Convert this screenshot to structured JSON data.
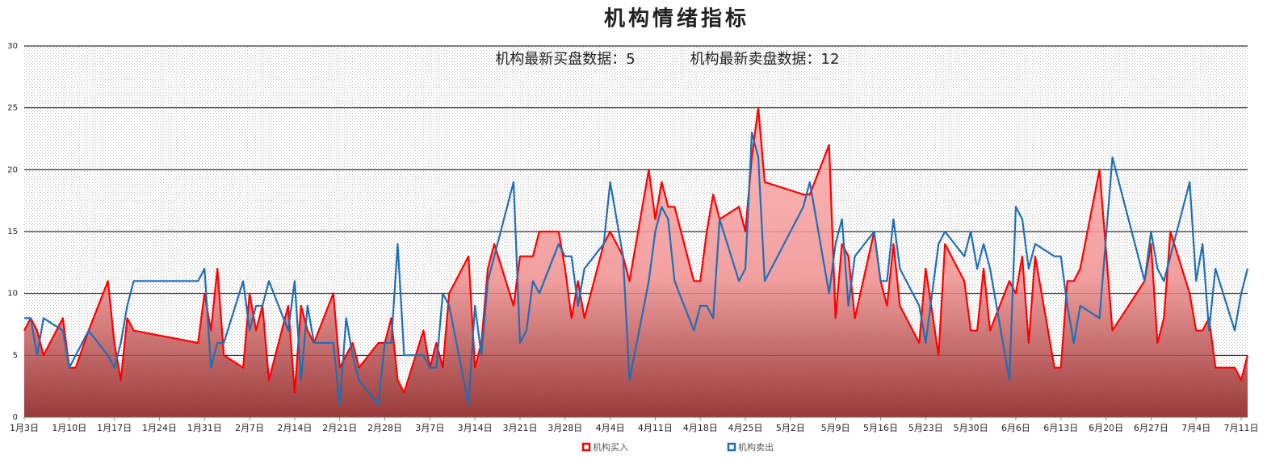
{
  "chart_data": {
    "type": "line",
    "title": "机构情绪指标",
    "annotations": [
      "机构最新买盘数据：5",
      "机构最新卖盘数据：12"
    ],
    "x": [
      "1月3日",
      "1月4日",
      "1月5日",
      "1月6日",
      "1月9日",
      "1月10日",
      "1月11日",
      "1月13日",
      "1月16日",
      "1月17日",
      "1月18日",
      "1月19日",
      "1月20日",
      "1月30日",
      "1月31日",
      "2月1日",
      "2月2日",
      "2月3日",
      "2月6日",
      "2月7日",
      "2月8日",
      "2月9日",
      "2月10日",
      "2月13日",
      "2月14日",
      "2月15日",
      "2月16日",
      "2月17日",
      "2月20日",
      "2月21日",
      "2月22日",
      "2月23日",
      "2月24日",
      "2月27日",
      "2月28日",
      "3月1日",
      "3月2日",
      "3月3日",
      "3月6日",
      "3月7日",
      "3月8日",
      "3月9日",
      "3月10日",
      "3月13日",
      "3月14日",
      "3月15日",
      "3月16日",
      "3月17日",
      "3月20日",
      "3月21日",
      "3月22日",
      "3月23日",
      "3月24日",
      "3月27日",
      "3月28日",
      "3月29日",
      "3月30日",
      "3月31日",
      "4月3日",
      "4月4日",
      "4月6日",
      "4月7日",
      "4月10日",
      "4月11日",
      "4月12日",
      "4月13日",
      "4月14日",
      "4月17日",
      "4月18日",
      "4月19日",
      "4月20日",
      "4月21日",
      "4月24日",
      "4月25日",
      "4月26日",
      "4月27日",
      "4月28日",
      "5月4日",
      "5月5日",
      "5月8日",
      "5月9日",
      "5月10日",
      "5月11日",
      "5月12日",
      "5月15日",
      "5月16日",
      "5月17日",
      "5月18日",
      "5月19日",
      "5月22日",
      "5月23日",
      "5月25日",
      "5月26日",
      "5月29日",
      "5月30日",
      "5月31日",
      "6月1日",
      "6月2日",
      "6月5日",
      "6月6日",
      "6月7日",
      "6月8日",
      "6月9日",
      "6月12日",
      "6月13日",
      "6月14日",
      "6月15日",
      "6月16日",
      "6月19日",
      "6月21日",
      "6月26日",
      "6月27日",
      "6月28日",
      "6月29日",
      "6月30日",
      "7月3日",
      "7月4日",
      "7月5日",
      "7月6日",
      "7月7日",
      "7月10日",
      "7月11日",
      "7月12日"
    ],
    "series": [
      {
        "name": "机构买入",
        "color": "#ff0000",
        "area": true,
        "values": [
          7,
          8,
          7,
          5,
          8,
          4,
          4,
          7,
          11,
          6,
          3,
          8,
          7,
          6,
          10,
          7,
          12,
          5,
          4,
          10,
          7,
          9,
          3,
          9,
          2,
          9,
          7,
          6,
          10,
          4,
          5,
          6,
          4,
          6,
          6,
          8,
          3,
          2,
          7,
          4,
          6,
          4,
          10,
          13,
          4,
          6,
          12,
          14,
          9,
          13,
          13,
          13,
          15,
          15,
          12,
          8,
          11,
          8,
          14,
          15,
          13,
          11,
          20,
          16,
          19,
          17,
          17,
          11,
          11,
          15,
          18,
          16,
          17,
          15,
          21,
          25,
          19,
          18,
          18,
          22,
          8,
          14,
          13,
          8,
          15,
          11,
          9,
          14,
          9,
          6,
          12,
          5,
          14,
          11,
          7,
          7,
          12,
          7,
          11,
          10,
          13,
          6,
          13,
          4,
          4,
          11,
          11,
          12,
          20,
          7,
          11,
          14,
          6,
          8,
          15,
          10,
          7,
          7,
          8,
          4,
          4,
          3,
          5
        ]
      },
      {
        "name": "机构卖出",
        "color": "#1f6fb5",
        "area": false,
        "values": [
          8,
          8,
          5,
          8,
          7,
          4,
          5,
          7,
          5,
          4,
          6,
          9,
          11,
          11,
          12,
          4,
          6,
          6,
          11,
          7,
          9,
          9,
          11,
          7,
          11,
          3,
          9,
          6,
          6,
          1,
          8,
          5,
          3,
          1,
          6,
          6,
          14,
          5,
          5,
          4,
          4,
          10,
          9,
          1,
          9,
          5,
          11,
          13,
          19,
          6,
          7,
          11,
          10,
          14,
          13,
          13,
          9,
          12,
          14,
          19,
          13,
          3,
          11,
          15,
          17,
          16,
          11,
          7,
          9,
          9,
          8,
          16,
          11,
          12,
          23,
          21,
          11,
          17,
          19,
          10,
          14,
          16,
          9,
          13,
          15,
          11,
          11,
          16,
          12,
          9,
          6,
          14,
          15,
          13,
          15,
          12,
          14,
          12,
          3,
          17,
          16,
          12,
          14,
          13,
          13,
          9,
          6,
          9,
          8,
          21,
          11,
          15,
          12,
          11,
          13,
          19,
          11,
          14,
          7,
          12,
          7,
          10,
          12
        ]
      }
    ],
    "xlim": [
      "1月3日",
      "7月12日"
    ],
    "xticks": [
      "1月3日",
      "1月10日",
      "1月17日",
      "1月24日",
      "1月31日",
      "2月7日",
      "2月14日",
      "2月21日",
      "2月28日",
      "3月7日",
      "3月14日",
      "3月21日",
      "3月28日",
      "4月4日",
      "4月11日",
      "4月18日",
      "4月25日",
      "5月2日",
      "5月9日",
      "5月16日",
      "5月23日",
      "5月30日",
      "6月6日",
      "6月13日",
      "6月20日",
      "6月27日",
      "7月4日",
      "7月11日"
    ],
    "ylim": [
      0,
      30
    ],
    "yticks": [
      0,
      5,
      10,
      15,
      20,
      25,
      30
    ],
    "grid": true
  }
}
